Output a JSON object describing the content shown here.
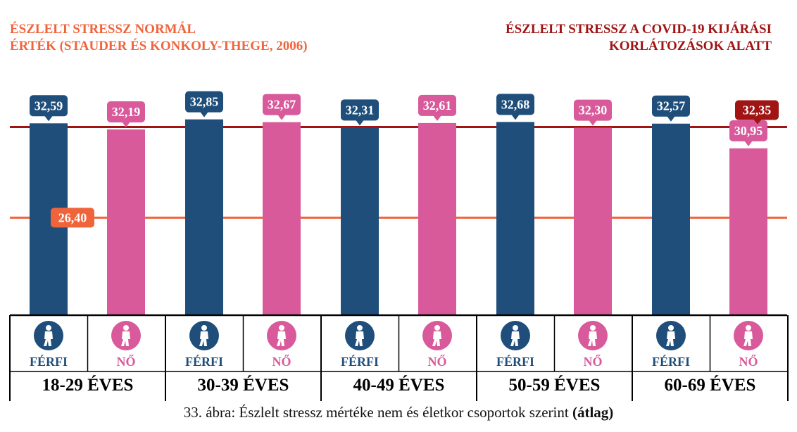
{
  "chart_data": {
    "type": "bar",
    "title": "Észlelt stressz mértéke nem és életkor csoportok szerint",
    "caption": "33. ábra: Észlelt stressz mértéke nem és életkor csoportok szerint",
    "caption_bold": "(átlag)",
    "categories": [
      "18-29 ÉVES",
      "30-39 ÉVES",
      "40-49 ÉVES",
      "50-59 ÉVES",
      "60-69 ÉVES"
    ],
    "series": [
      {
        "name": "FÉRFI",
        "color": "#1f4e7a",
        "values": [
          32.59,
          32.85,
          32.31,
          32.68,
          32.57
        ],
        "labels": [
          "32,59",
          "32,85",
          "32,31",
          "32,68",
          "32,57"
        ]
      },
      {
        "name": "NŐ",
        "color": "#d85a9b",
        "values": [
          32.19,
          32.67,
          32.61,
          32.3,
          30.95
        ],
        "labels": [
          "32,19",
          "32,67",
          "32,61",
          "32,30",
          "30,95"
        ]
      }
    ],
    "reference_lines": [
      {
        "name": "ÉSZLELT STRESSZ NORMÁL ÉRTÉK (STAUDER ÉS KONKOLY-THEGE, 2006)",
        "value": 26.4,
        "label": "26,40",
        "color": "#f0643c"
      },
      {
        "name": "ÉSZLELT STRESSZ A COVID-19 KIJÁRÁSI KORLÁTOZÁSOK ALATT",
        "value": 32.35,
        "label": "32,35",
        "color": "#a01414"
      }
    ],
    "ylim": [
      20,
      33.5
    ],
    "xlabel": "",
    "ylabel": ""
  },
  "legend": {
    "left_line1": "ÉSZLELT  STRESSZ NORMÁL",
    "left_line2": "ÉRTÉK (STAUDER ÉS KONKOLY-THEGE, 2006)",
    "right_line1": "ÉSZLELT STRESSZ A COVID-19 KIJÁRÁSI",
    "right_line2": "KORLÁTOZÁSOK ALATT"
  },
  "icons": {
    "male": [
      "person-graduate-icon",
      "person-backpack-icon",
      "person-walking-icon",
      "person-standing-icon",
      "elderly-cane-icon"
    ],
    "female": [
      "woman-graduate-icon",
      "woman-shopping-icon",
      "woman-walking-icon",
      "woman-standing-icon",
      "elderly-woman-cane-icon"
    ]
  }
}
